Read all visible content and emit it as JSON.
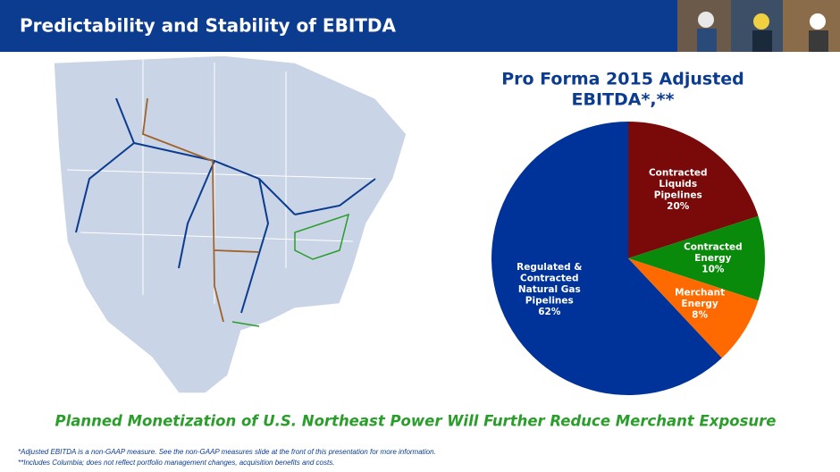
{
  "header": {
    "title": "Predictability and Stability of EBITDA"
  },
  "chart_data": {
    "type": "pie",
    "title": [
      "Pro Forma 2015 Adjusted",
      "EBITDA*,**"
    ],
    "categories": [
      [
        "Contracted",
        "Liquids",
        "Pipelines"
      ],
      [
        "Contracted",
        "Energy"
      ],
      [
        "Merchant",
        "Energy"
      ],
      [
        "Regulated &",
        "Contracted",
        "Natural Gas",
        "Pipelines"
      ]
    ],
    "values": [
      20,
      10,
      8,
      62
    ],
    "value_labels": [
      "20%",
      "10%",
      "8%",
      "62%"
    ],
    "colors": [
      "#7a0a0a",
      "#0a8a0a",
      "#ff6a00",
      "#003399"
    ]
  },
  "banner": "Planned Monetization of U.S. Northeast Power Will Further Reduce Merchant Exposure",
  "footnotes": [
    "*Adjusted EBITDA is a non-GAAP measure. See the non-GAAP measures slide at the front of this presentation for more information.",
    "**Includes Columbia; does not reflect portfolio management changes, acquisition benefits and costs."
  ]
}
